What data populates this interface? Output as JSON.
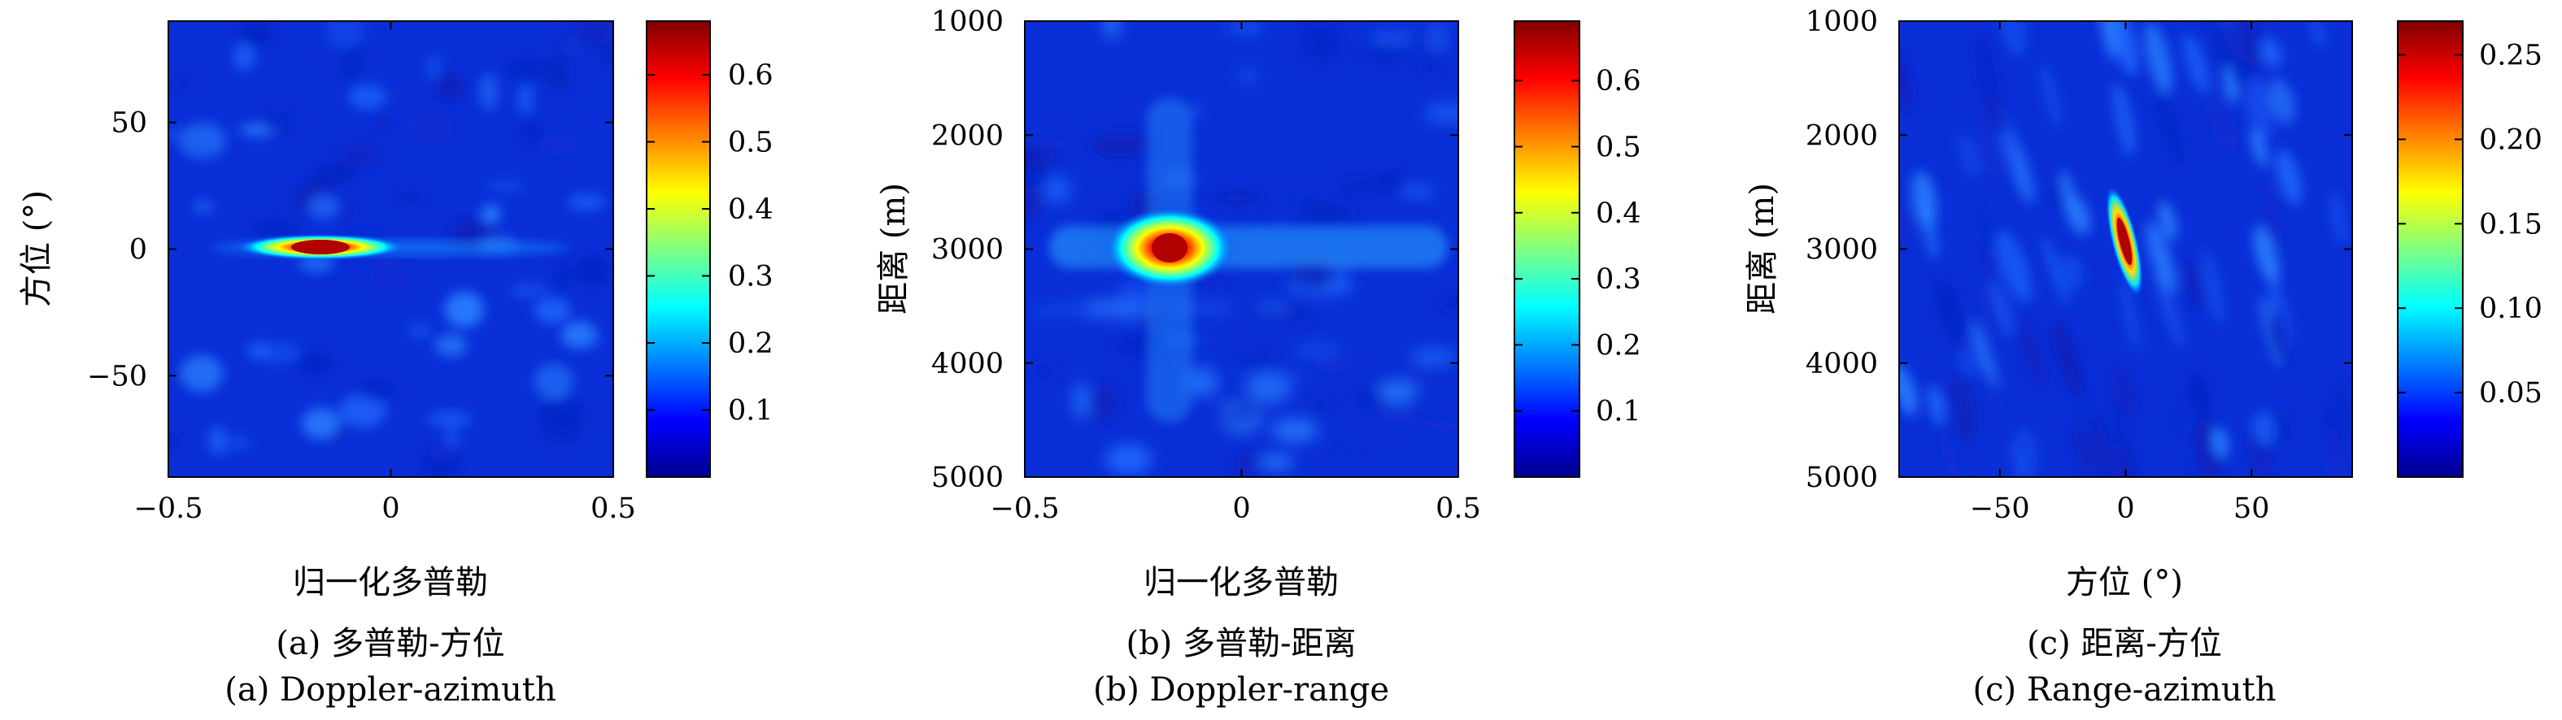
{
  "colors": {
    "jet": [
      "#00008f",
      "#0000ff",
      "#0080ff",
      "#00ffff",
      "#80ff80",
      "#ffff00",
      "#ff8000",
      "#ff0000",
      "#800000"
    ],
    "background": "#ffffff",
    "axis": "#000000"
  },
  "chart_data": [
    {
      "type": "heatmap",
      "caption_cn": "(a) 多普勒-方位",
      "caption_en": "(a) Doppler-azimuth",
      "xlabel": "归一化多普勒",
      "ylabel": "方位 (°)",
      "xlim": [
        -0.5,
        0.5
      ],
      "ylim": [
        90,
        -90
      ],
      "y_reversed": true,
      "xticks": [
        -0.5,
        0,
        0.5
      ],
      "xtick_labels": [
        "−0.5",
        "0",
        "0.5"
      ],
      "yticks": [
        -50,
        0,
        50
      ],
      "ytick_labels": [
        "−50",
        "0",
        "50"
      ],
      "colorbar": {
        "min": 0,
        "max": 0.68,
        "ticks": [
          0.1,
          0.2,
          0.3,
          0.4,
          0.5,
          0.6
        ],
        "tick_labels": [
          "0.1",
          "0.2",
          "0.3",
          "0.4",
          "0.5",
          "0.6"
        ]
      },
      "peak": {
        "x": -0.15,
        "y": 0,
        "value": 0.68
      },
      "background_level": 0.04
    },
    {
      "type": "heatmap",
      "caption_cn": "(b) 多普勒-距离",
      "caption_en": "(b) Doppler-range",
      "xlabel": "归一化多普勒",
      "ylabel": "距离 (m)",
      "xlim": [
        -0.5,
        0.5
      ],
      "ylim": [
        1000,
        5000
      ],
      "y_reversed": true,
      "xticks": [
        -0.5,
        0,
        0.5
      ],
      "xtick_labels": [
        "−0.5",
        "0",
        "0.5"
      ],
      "yticks": [
        1000,
        2000,
        3000,
        4000,
        5000
      ],
      "ytick_labels": [
        "1000",
        "2000",
        "3000",
        "4000",
        "5000"
      ],
      "colorbar": {
        "min": 0,
        "max": 0.69,
        "ticks": [
          0.1,
          0.2,
          0.3,
          0.4,
          0.5,
          0.6
        ],
        "tick_labels": [
          "0.1",
          "0.2",
          "0.3",
          "0.4",
          "0.5",
          "0.6"
        ]
      },
      "peak": {
        "x": -0.16,
        "y": 3000,
        "value": 0.69
      },
      "background_level": 0.05
    },
    {
      "type": "heatmap",
      "caption_cn": "(c) 距离-方位",
      "caption_en": "(c) Range-azimuth",
      "xlabel": "方位 (°)",
      "ylabel": "距离 (m)",
      "xlim": [
        -90,
        90
      ],
      "ylim": [
        1000,
        5000
      ],
      "y_reversed": true,
      "xticks": [
        -50,
        0,
        50
      ],
      "xtick_labels": [
        "−50",
        "0",
        "50"
      ],
      "yticks": [
        1000,
        2000,
        3000,
        4000,
        5000
      ],
      "ytick_labels": [
        "1000",
        "2000",
        "3000",
        "4000",
        "5000"
      ],
      "colorbar": {
        "min": 0,
        "max": 0.27,
        "ticks": [
          0.05,
          0.1,
          0.15,
          0.2,
          0.25
        ],
        "tick_labels": [
          "0.05",
          "0.10",
          "0.15",
          "0.20",
          "0.25"
        ]
      },
      "peak": {
        "x": -1,
        "y": 2950,
        "value": 0.27
      },
      "background_level": 0.045
    }
  ]
}
